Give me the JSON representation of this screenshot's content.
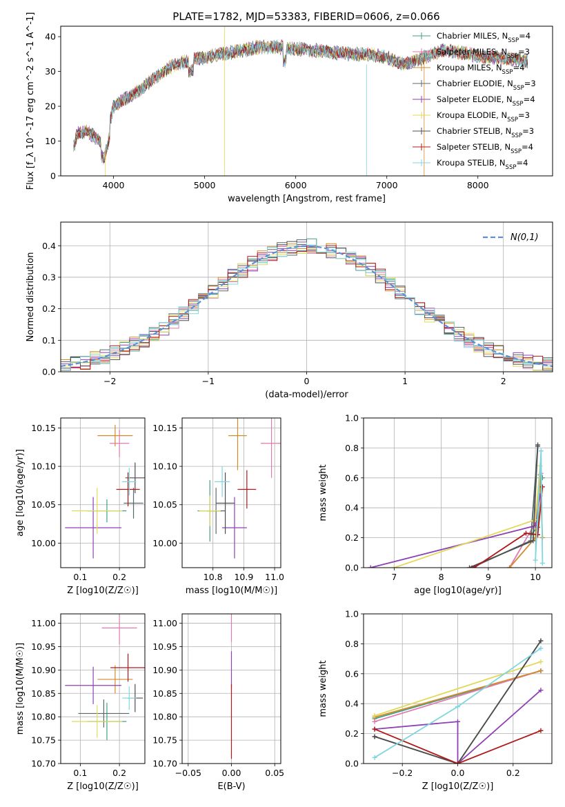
{
  "title": "PLATE=1782, MJD=53383, FIBERID=0606, z=0.066",
  "colors": [
    "#3f9f86",
    "#e07aae",
    "#d28a2a",
    "#58686a",
    "#8e3fb3",
    "#e0d95a",
    "#4d4d4d",
    "#b01818",
    "#7fd6df"
  ],
  "legend_labels": [
    "Chabrier MILES, N$_{SSP}$=4",
    "Salpeter MILES, N$_{SSP}$=3",
    "Kroupa MILES, N$_{SSP}$=4",
    "Chabrier ELODIE, N$_{SSP}$=3",
    "Salpeter ELODIE, N$_{SSP}$=4",
    "Kroupa ELODIE, N$_{SSP}$=3",
    "Chabrier STELIB, N$_{SSP}$=3",
    "Salpeter STELIB, N$_{SSP}$=4",
    "Kroupa STELIB, N$_{SSP}$=4"
  ],
  "chart_data": [
    {
      "id": "spectrum",
      "type": "line",
      "xlabel": "wavelength [Angstrom, rest frame]",
      "ylabel": "Flux [f_λ 10^-17 erg cm^-2 s^-1 A^-1]",
      "xlim": [
        3420,
        8820
      ],
      "ylim": [
        0,
        43
      ],
      "xticks": [
        4000,
        5000,
        6000,
        7000,
        8000
      ],
      "yticks": [
        0,
        10,
        20,
        30,
        40
      ],
      "legend": "upper-right",
      "anchors": [
        [
          3560,
          8
        ],
        [
          3600,
          12
        ],
        [
          3700,
          13
        ],
        [
          3800,
          11
        ],
        [
          3900,
          9
        ],
        [
          4000,
          20
        ],
        [
          4100,
          22
        ],
        [
          4200,
          23
        ],
        [
          4400,
          27
        ],
        [
          4600,
          31
        ],
        [
          4800,
          33
        ],
        [
          5000,
          34
        ],
        [
          5200,
          35
        ],
        [
          5400,
          36
        ],
        [
          5600,
          37
        ],
        [
          5800,
          37
        ],
        [
          6000,
          36.5
        ],
        [
          6200,
          36
        ],
        [
          6400,
          35.5
        ],
        [
          6600,
          35
        ],
        [
          6800,
          35
        ],
        [
          7000,
          34
        ],
        [
          7200,
          32
        ],
        [
          7400,
          34
        ],
        [
          7600,
          36
        ],
        [
          7800,
          35.5
        ],
        [
          8000,
          34.5
        ],
        [
          8200,
          34
        ],
        [
          8400,
          33.5
        ],
        [
          8550,
          33
        ]
      ],
      "spikes": [
        [
          5220,
          0,
          43
        ],
        [
          6780,
          0,
          32
        ],
        [
          7410,
          0,
          34
        ],
        [
          3910,
          0,
          8
        ]
      ]
    },
    {
      "id": "residuals",
      "type": "histogram",
      "xlabel": "(data-model)/error",
      "ylabel": "Normed distribution",
      "xlim": [
        -2.5,
        2.5
      ],
      "ylim": [
        0,
        0.475
      ],
      "xticks": [
        -2,
        -1,
        0,
        1,
        2
      ],
      "yticks": [
        0,
        0.1,
        0.2,
        0.3,
        0.4
      ],
      "grid": true,
      "legend": "upper-right",
      "legend_label": "N(0,1)",
      "bin_width": 0.1
    },
    {
      "id": "z-age",
      "type": "errorbar",
      "xlabel": "Z [log10(Z/Z☉)]",
      "ylabel": "age  [log10(age/yr)]",
      "xlim": [
        0.05,
        0.265
      ],
      "ylim": [
        9.968,
        10.163
      ],
      "xticks": [
        0.1,
        0.2
      ],
      "yticks": [
        10.0,
        10.05,
        10.1,
        10.15
      ],
      "points": [
        {
          "x": 0.168,
          "y": 10.042,
          "xerr": 0.05,
          "yerr": 0.015
        },
        {
          "x": 0.2,
          "y": 10.13,
          "xerr": 0.025,
          "yerr": 0.018
        },
        {
          "x": 0.189,
          "y": 10.14,
          "xerr": 0.045,
          "yerr": 0.014
        },
        {
          "x": 0.236,
          "y": 10.052,
          "xerr": 0.025,
          "yerr": 0.02
        },
        {
          "x": 0.133,
          "y": 10.02,
          "xerr": 0.072,
          "yerr": 0.04
        },
        {
          "x": 0.143,
          "y": 10.042,
          "xerr": 0.065,
          "yerr": 0.03
        },
        {
          "x": 0.24,
          "y": 10.085,
          "xerr": 0.025,
          "yerr": 0.02
        },
        {
          "x": 0.222,
          "y": 10.07,
          "xerr": 0.03,
          "yerr": 0.022
        },
        {
          "x": 0.225,
          "y": 10.08,
          "xerr": 0.018,
          "yerr": 0.018
        }
      ]
    },
    {
      "id": "mass-age",
      "type": "errorbar",
      "xlabel": "mass [log10(M/M☉)]",
      "ylabel": "",
      "xlim": [
        10.7,
        11.02
      ],
      "ylim": [
        9.968,
        10.163
      ],
      "xticks": [
        10.8,
        10.9,
        11.0
      ],
      "yticks": [
        10.0,
        10.05,
        10.1,
        10.15
      ],
      "points": [
        {
          "x": 10.79,
          "y": 10.042,
          "xerr": 0.04,
          "yerr": 0.04
        },
        {
          "x": 10.99,
          "y": 10.13,
          "xerr": 0.035,
          "yerr": 0.045
        },
        {
          "x": 10.88,
          "y": 10.14,
          "xerr": 0.03,
          "yerr": 0.045
        },
        {
          "x": 10.81,
          "y": 10.042,
          "xerr": 0.03,
          "yerr": 0.03
        },
        {
          "x": 10.87,
          "y": 10.02,
          "xerr": 0.04,
          "yerr": 0.04
        },
        {
          "x": 10.79,
          "y": 10.042,
          "xerr": 0.035,
          "yerr": 0.02
        },
        {
          "x": 10.84,
          "y": 10.052,
          "xerr": 0.03,
          "yerr": 0.04
        },
        {
          "x": 10.91,
          "y": 10.07,
          "xerr": 0.03,
          "yerr": 0.025
        },
        {
          "x": 10.83,
          "y": 10.08,
          "xerr": 0.025,
          "yerr": 0.02
        }
      ]
    },
    {
      "id": "age-weight",
      "type": "line",
      "xlabel": "age  [log10(age/yr)]",
      "ylabel": "mass weight",
      "xlim": [
        6.35,
        10.35
      ],
      "ylim": [
        0,
        1.0
      ],
      "xticks": [
        7,
        8,
        9,
        10
      ],
      "yticks": [
        0,
        0.2,
        0.4,
        0.6,
        0.8,
        1.0
      ],
      "grid": true,
      "series": [
        {
          "x": [
            9.9,
            10.05,
            10.1,
            10.15
          ],
          "y": [
            0.22,
            0.27,
            0.62,
            0.6
          ]
        },
        {
          "x": [
            9.45,
            10.0,
            10.12
          ],
          "y": [
            0.0,
            0.3,
            0.63
          ]
        },
        {
          "x": [
            9.45,
            10.0,
            10.1,
            10.15
          ],
          "y": [
            0.0,
            0.2,
            0.6,
            0.2
          ]
        },
        {
          "x": [
            8.65,
            9.9,
            10.05
          ],
          "y": [
            0.0,
            0.18,
            0.81
          ]
        },
        {
          "x": [
            6.5,
            10.0,
            10.1
          ],
          "y": [
            0.0,
            0.28,
            0.48
          ]
        },
        {
          "x": [
            7.0,
            10.0,
            10.1
          ],
          "y": [
            0.0,
            0.32,
            0.68
          ]
        },
        {
          "x": [
            8.6,
            9.95,
            10.05
          ],
          "y": [
            0.0,
            0.18,
            0.82
          ]
        },
        {
          "x": [
            8.7,
            9.8,
            10.05,
            10.15
          ],
          "y": [
            0.0,
            0.23,
            0.22,
            0.54
          ]
        },
        {
          "x": [
            10.0,
            10.12,
            10.15
          ],
          "y": [
            0.05,
            0.78,
            0.03
          ]
        }
      ]
    },
    {
      "id": "z-mass",
      "type": "errorbar",
      "xlabel": "Z [log10(Z/Z☉)]",
      "ylabel": "mass [log10(M/M☉)]",
      "xlim": [
        0.05,
        0.265
      ],
      "ylim": [
        10.7,
        11.02
      ],
      "xticks": [
        0.1,
        0.2
      ],
      "yticks": [
        10.7,
        10.75,
        10.8,
        10.85,
        10.9,
        10.95,
        11.0
      ],
      "points": [
        {
          "x": 0.168,
          "y": 10.79,
          "xerr": 0.05,
          "yerr": 0.04
        },
        {
          "x": 0.2,
          "y": 10.99,
          "xerr": 0.045,
          "yerr": 0.035
        },
        {
          "x": 0.189,
          "y": 10.88,
          "xerr": 0.045,
          "yerr": 0.03
        },
        {
          "x": 0.16,
          "y": 10.807,
          "xerr": 0.065,
          "yerr": 0.03
        },
        {
          "x": 0.133,
          "y": 10.867,
          "xerr": 0.072,
          "yerr": 0.04
        },
        {
          "x": 0.143,
          "y": 10.79,
          "xerr": 0.065,
          "yerr": 0.035
        },
        {
          "x": 0.24,
          "y": 10.84,
          "xerr": 0.02,
          "yerr": 0.03
        },
        {
          "x": 0.222,
          "y": 10.905,
          "xerr": 0.045,
          "yerr": 0.03
        },
        {
          "x": 0.225,
          "y": 10.84,
          "xerr": 0.018,
          "yerr": 0.025
        }
      ]
    },
    {
      "id": "ebv-mass",
      "type": "errorbar",
      "xlabel": "E(B-V)",
      "ylabel": "",
      "xlim": [
        -0.057,
        0.057
      ],
      "ylim": [
        10.7,
        11.02
      ],
      "xticks": [
        -0.05,
        0.0,
        0.05
      ],
      "yticks": [
        10.7,
        10.75,
        10.8,
        10.85,
        10.9,
        10.95,
        11.0
      ],
      "points": [
        {
          "x": 0.0,
          "y": 10.99,
          "xerr": 0,
          "yerr": 0.03
        },
        {
          "x": 0.0,
          "y": 10.9,
          "xerr": 0,
          "yerr": 0.04
        },
        {
          "x": 0.0,
          "y": 10.79,
          "xerr": 0,
          "yerr": 0.08
        }
      ]
    },
    {
      "id": "z-weight",
      "type": "line",
      "xlabel": "Z [log10(Z/Z☉)]",
      "ylabel": "mass weight",
      "xlim": [
        -0.34,
        0.34
      ],
      "ylim": [
        0,
        1.0
      ],
      "xticks": [
        -0.2,
        0.0,
        0.2
      ],
      "yticks": [
        0,
        0.2,
        0.4,
        0.6,
        0.8,
        1.0
      ],
      "grid": true,
      "series": [
        {
          "x": [
            -0.3,
            0.3
          ],
          "y": [
            0.3,
            0.62
          ]
        },
        {
          "x": [
            -0.3,
            0.3
          ],
          "y": [
            0.28,
            0.62
          ]
        },
        {
          "x": [
            -0.3,
            0.3
          ],
          "y": [
            0.31,
            0.62
          ]
        },
        {
          "x": [
            -0.3,
            0.0,
            0.3
          ],
          "y": [
            0.18,
            0.0,
            0.82
          ]
        },
        {
          "x": [
            -0.3,
            0.0,
            0.0,
            0.3
          ],
          "y": [
            0.23,
            0.28,
            0.0,
            0.49
          ]
        },
        {
          "x": [
            -0.3,
            0.3
          ],
          "y": [
            0.32,
            0.68
          ]
        },
        {
          "x": [
            -0.3,
            0.0,
            0.3
          ],
          "y": [
            0.18,
            0.0,
            0.82
          ]
        },
        {
          "x": [
            -0.3,
            0.0,
            0.3
          ],
          "y": [
            0.23,
            0.0,
            0.22
          ]
        },
        {
          "x": [
            -0.3,
            0.0,
            0.3
          ],
          "y": [
            0.04,
            0.38,
            0.77
          ]
        }
      ]
    }
  ]
}
